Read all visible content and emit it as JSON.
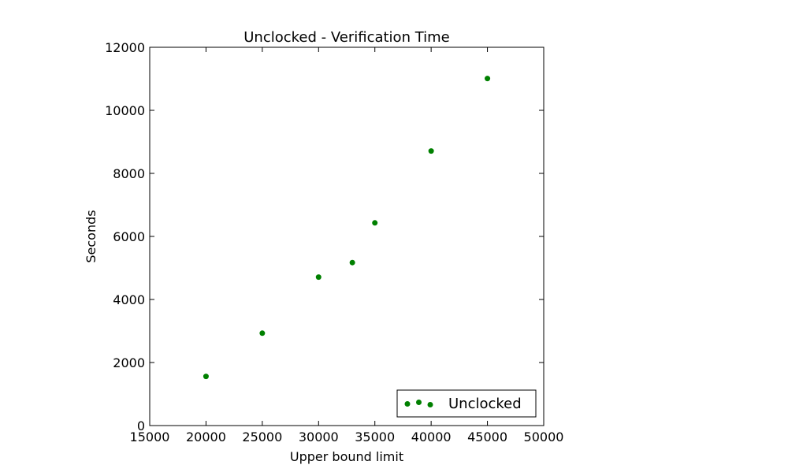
{
  "chart_data": {
    "type": "scatter",
    "title": "Unclocked - Verification Time",
    "xlabel": "Upper bound limit",
    "ylabel": "Seconds",
    "xlim": [
      15000,
      50000
    ],
    "ylim": [
      0,
      12000
    ],
    "x_ticks": [
      15000,
      20000,
      25000,
      30000,
      35000,
      40000,
      45000,
      50000
    ],
    "y_ticks": [
      0,
      2000,
      4000,
      6000,
      8000,
      10000,
      12000
    ],
    "x_tick_labels": [
      "15000",
      "20000",
      "25000",
      "30000",
      "35000",
      "40000",
      "45000",
      "50000"
    ],
    "y_tick_labels": [
      "0",
      "2000",
      "4000",
      "6000",
      "8000",
      "10000",
      "12000"
    ],
    "grid": false,
    "legend": {
      "placement": "lower-right",
      "entries": [
        "Unclocked"
      ]
    },
    "series": [
      {
        "name": "Unclocked",
        "color": "#008000",
        "x": [
          20000,
          25000,
          30000,
          33000,
          35000,
          40000,
          45000
        ],
        "y": [
          1560,
          2930,
          4710,
          5170,
          6430,
          8710,
          11010
        ]
      }
    ]
  }
}
